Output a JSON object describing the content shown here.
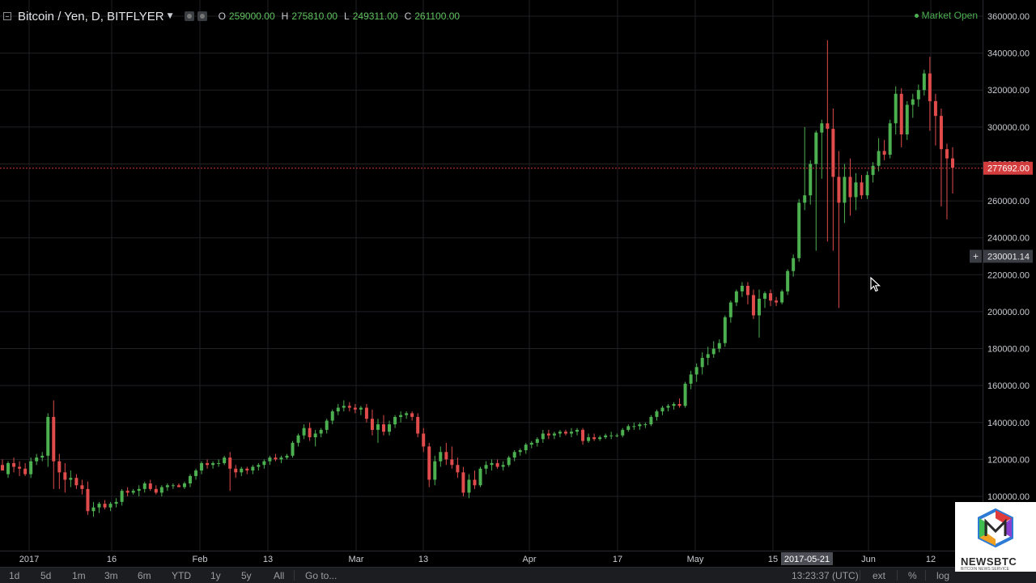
{
  "header": {
    "symbol": "Bitcoin / Yen, D, BITFLYER",
    "ohlc": [
      {
        "label": "O",
        "value": "259000.00"
      },
      {
        "label": "H",
        "value": "275810.00"
      },
      {
        "label": "L",
        "value": "249311.00"
      },
      {
        "label": "C",
        "value": "261100.00"
      }
    ],
    "market_status": "Market Open"
  },
  "colors": {
    "up": "#4caf50",
    "down": "#e04b4b",
    "grid": "#1f2125",
    "price_line": "#d23c3c",
    "axis_text": "#c9ccd1"
  },
  "chart_data": {
    "type": "candlestick",
    "y_axis_labels": [
      "360000.00",
      "340000.00",
      "320000.00",
      "300000.00",
      "280000.00",
      "260000.00",
      "240000.00",
      "220000.00",
      "200000.00",
      "180000.00",
      "160000.00",
      "140000.00",
      "120000.00",
      "100000.00"
    ],
    "ylim": [
      90000,
      360000
    ],
    "x_axis_labels": [
      "2017",
      "16",
      "Feb",
      "13",
      "Mar",
      "13",
      "Apr",
      "17",
      "May",
      "15",
      "Jun",
      "12"
    ],
    "crosshair_date": "2017-05-21",
    "current_price": "277692.00",
    "crosshair_price": "230001.14",
    "series": [
      {
        "o": 117000,
        "h": 120000,
        "l": 114000,
        "c": 114000
      },
      {
        "o": 112000,
        "h": 119000,
        "l": 110000,
        "c": 118000
      },
      {
        "o": 118000,
        "h": 121000,
        "l": 113000,
        "c": 116000
      },
      {
        "o": 116000,
        "h": 119000,
        "l": 111000,
        "c": 115000
      },
      {
        "o": 115000,
        "h": 118000,
        "l": 111000,
        "c": 112000
      },
      {
        "o": 112000,
        "h": 121000,
        "l": 110000,
        "c": 119000
      },
      {
        "o": 119000,
        "h": 123000,
        "l": 117000,
        "c": 121000
      },
      {
        "o": 121000,
        "h": 124000,
        "l": 119000,
        "c": 122000
      },
      {
        "o": 122000,
        "h": 145000,
        "l": 116000,
        "c": 143000
      },
      {
        "o": 143000,
        "h": 152000,
        "l": 104000,
        "c": 119000
      },
      {
        "o": 119000,
        "h": 123000,
        "l": 104000,
        "c": 113000
      },
      {
        "o": 113000,
        "h": 118000,
        "l": 102000,
        "c": 109000
      },
      {
        "o": 109000,
        "h": 114000,
        "l": 105000,
        "c": 110000
      },
      {
        "o": 110000,
        "h": 112000,
        "l": 104000,
        "c": 106000
      },
      {
        "o": 106000,
        "h": 109000,
        "l": 101000,
        "c": 104000
      },
      {
        "o": 104000,
        "h": 108000,
        "l": 90000,
        "c": 92000
      },
      {
        "o": 92000,
        "h": 97000,
        "l": 89000,
        "c": 94000
      },
      {
        "o": 94000,
        "h": 97000,
        "l": 91000,
        "c": 96000
      },
      {
        "o": 96000,
        "h": 98000,
        "l": 93000,
        "c": 94000
      },
      {
        "o": 94000,
        "h": 97000,
        "l": 92000,
        "c": 96000
      },
      {
        "o": 96000,
        "h": 99000,
        "l": 94000,
        "c": 97000
      },
      {
        "o": 97000,
        "h": 104000,
        "l": 95000,
        "c": 103000
      },
      {
        "o": 103000,
        "h": 105000,
        "l": 100000,
        "c": 102000
      },
      {
        "o": 102000,
        "h": 104000,
        "l": 101000,
        "c": 103000
      },
      {
        "o": 103000,
        "h": 106000,
        "l": 100000,
        "c": 104000
      },
      {
        "o": 104000,
        "h": 108000,
        "l": 102000,
        "c": 107000
      },
      {
        "o": 107000,
        "h": 109000,
        "l": 103000,
        "c": 104000
      },
      {
        "o": 104000,
        "h": 106000,
        "l": 101000,
        "c": 102000
      },
      {
        "o": 102000,
        "h": 106000,
        "l": 100000,
        "c": 105000
      },
      {
        "o": 105000,
        "h": 107000,
        "l": 103000,
        "c": 106000
      },
      {
        "o": 106000,
        "h": 107000,
        "l": 104000,
        "c": 106000
      },
      {
        "o": 106000,
        "h": 107000,
        "l": 105000,
        "c": 105000
      },
      {
        "o": 105000,
        "h": 108000,
        "l": 104000,
        "c": 107000
      },
      {
        "o": 107000,
        "h": 112000,
        "l": 105000,
        "c": 111000
      },
      {
        "o": 111000,
        "h": 115000,
        "l": 109000,
        "c": 114000
      },
      {
        "o": 114000,
        "h": 119000,
        "l": 112000,
        "c": 118000
      },
      {
        "o": 118000,
        "h": 120000,
        "l": 115000,
        "c": 117000
      },
      {
        "o": 117000,
        "h": 119000,
        "l": 115000,
        "c": 118000
      },
      {
        "o": 118000,
        "h": 120000,
        "l": 116000,
        "c": 118000
      },
      {
        "o": 118000,
        "h": 122000,
        "l": 117000,
        "c": 121000
      },
      {
        "o": 121000,
        "h": 124000,
        "l": 103000,
        "c": 115000
      },
      {
        "o": 115000,
        "h": 117000,
        "l": 110000,
        "c": 113000
      },
      {
        "o": 113000,
        "h": 116000,
        "l": 111000,
        "c": 115000
      },
      {
        "o": 115000,
        "h": 116000,
        "l": 112000,
        "c": 114000
      },
      {
        "o": 114000,
        "h": 117000,
        "l": 112000,
        "c": 116000
      },
      {
        "o": 116000,
        "h": 118000,
        "l": 114000,
        "c": 117000
      },
      {
        "o": 117000,
        "h": 120000,
        "l": 115000,
        "c": 119000
      },
      {
        "o": 119000,
        "h": 122000,
        "l": 117000,
        "c": 121000
      },
      {
        "o": 121000,
        "h": 123000,
        "l": 119000,
        "c": 120000
      },
      {
        "o": 120000,
        "h": 122000,
        "l": 118000,
        "c": 121000
      },
      {
        "o": 121000,
        "h": 123000,
        "l": 120000,
        "c": 122000
      },
      {
        "o": 122000,
        "h": 130000,
        "l": 121000,
        "c": 129000
      },
      {
        "o": 129000,
        "h": 134000,
        "l": 127000,
        "c": 133000
      },
      {
        "o": 133000,
        "h": 139000,
        "l": 131000,
        "c": 137000
      },
      {
        "o": 137000,
        "h": 140000,
        "l": 130000,
        "c": 132000
      },
      {
        "o": 132000,
        "h": 136000,
        "l": 127000,
        "c": 134000
      },
      {
        "o": 134000,
        "h": 137000,
        "l": 132000,
        "c": 136000
      },
      {
        "o": 136000,
        "h": 142000,
        "l": 134000,
        "c": 141000
      },
      {
        "o": 141000,
        "h": 147000,
        "l": 139000,
        "c": 146000
      },
      {
        "o": 146000,
        "h": 150000,
        "l": 144000,
        "c": 148000
      },
      {
        "o": 148000,
        "h": 152000,
        "l": 146000,
        "c": 149000
      },
      {
        "o": 149000,
        "h": 151000,
        "l": 146000,
        "c": 148000
      },
      {
        "o": 148000,
        "h": 150000,
        "l": 145000,
        "c": 147000
      },
      {
        "o": 147000,
        "h": 149000,
        "l": 144000,
        "c": 148000
      },
      {
        "o": 148000,
        "h": 150000,
        "l": 140000,
        "c": 142000
      },
      {
        "o": 142000,
        "h": 147000,
        "l": 133000,
        "c": 136000
      },
      {
        "o": 136000,
        "h": 142000,
        "l": 129000,
        "c": 139000
      },
      {
        "o": 139000,
        "h": 144000,
        "l": 133000,
        "c": 135000
      },
      {
        "o": 135000,
        "h": 141000,
        "l": 133000,
        "c": 139000
      },
      {
        "o": 139000,
        "h": 144000,
        "l": 137000,
        "c": 143000
      },
      {
        "o": 143000,
        "h": 146000,
        "l": 140000,
        "c": 144000
      },
      {
        "o": 144000,
        "h": 146000,
        "l": 142000,
        "c": 145000
      },
      {
        "o": 145000,
        "h": 146000,
        "l": 141000,
        "c": 143000
      },
      {
        "o": 143000,
        "h": 145000,
        "l": 132000,
        "c": 134000
      },
      {
        "o": 134000,
        "h": 137000,
        "l": 124000,
        "c": 127000
      },
      {
        "o": 127000,
        "h": 129000,
        "l": 105000,
        "c": 109000
      },
      {
        "o": 109000,
        "h": 122000,
        "l": 106000,
        "c": 119000
      },
      {
        "o": 119000,
        "h": 127000,
        "l": 116000,
        "c": 124000
      },
      {
        "o": 124000,
        "h": 129000,
        "l": 117000,
        "c": 120000
      },
      {
        "o": 120000,
        "h": 127000,
        "l": 115000,
        "c": 117000
      },
      {
        "o": 117000,
        "h": 121000,
        "l": 110000,
        "c": 113000
      },
      {
        "o": 113000,
        "h": 116000,
        "l": 100000,
        "c": 102000
      },
      {
        "o": 102000,
        "h": 112000,
        "l": 99000,
        "c": 109000
      },
      {
        "o": 109000,
        "h": 114000,
        "l": 104000,
        "c": 106000
      },
      {
        "o": 106000,
        "h": 116000,
        "l": 105000,
        "c": 115000
      },
      {
        "o": 115000,
        "h": 119000,
        "l": 112000,
        "c": 117000
      },
      {
        "o": 117000,
        "h": 120000,
        "l": 114000,
        "c": 118000
      },
      {
        "o": 118000,
        "h": 120000,
        "l": 115000,
        "c": 116000
      },
      {
        "o": 116000,
        "h": 119000,
        "l": 114000,
        "c": 117000
      },
      {
        "o": 117000,
        "h": 122000,
        "l": 116000,
        "c": 121000
      },
      {
        "o": 121000,
        "h": 125000,
        "l": 119000,
        "c": 124000
      },
      {
        "o": 124000,
        "h": 126000,
        "l": 122000,
        "c": 125000
      },
      {
        "o": 125000,
        "h": 129000,
        "l": 123000,
        "c": 128000
      },
      {
        "o": 128000,
        "h": 130000,
        "l": 126000,
        "c": 129000
      },
      {
        "o": 129000,
        "h": 132000,
        "l": 127000,
        "c": 131000
      },
      {
        "o": 131000,
        "h": 136000,
        "l": 129000,
        "c": 134000
      },
      {
        "o": 134000,
        "h": 136000,
        "l": 131000,
        "c": 133000
      },
      {
        "o": 133000,
        "h": 135000,
        "l": 131000,
        "c": 134000
      },
      {
        "o": 134000,
        "h": 136000,
        "l": 132000,
        "c": 135000
      },
      {
        "o": 135000,
        "h": 136000,
        "l": 133000,
        "c": 134000
      },
      {
        "o": 134000,
        "h": 137000,
        "l": 132000,
        "c": 135000
      },
      {
        "o": 135000,
        "h": 137000,
        "l": 133000,
        "c": 136000
      },
      {
        "o": 136000,
        "h": 137000,
        "l": 128000,
        "c": 130000
      },
      {
        "o": 130000,
        "h": 134000,
        "l": 129000,
        "c": 132000
      },
      {
        "o": 132000,
        "h": 134000,
        "l": 130000,
        "c": 131000
      },
      {
        "o": 131000,
        "h": 133000,
        "l": 130000,
        "c": 132000
      },
      {
        "o": 132000,
        "h": 134000,
        "l": 131000,
        "c": 133000
      },
      {
        "o": 133000,
        "h": 135000,
        "l": 131000,
        "c": 133000
      },
      {
        "o": 133000,
        "h": 134000,
        "l": 132000,
        "c": 133000
      },
      {
        "o": 133000,
        "h": 137000,
        "l": 132000,
        "c": 136000
      },
      {
        "o": 136000,
        "h": 139000,
        "l": 135000,
        "c": 138000
      },
      {
        "o": 138000,
        "h": 140000,
        "l": 136000,
        "c": 138000
      },
      {
        "o": 138000,
        "h": 140000,
        "l": 136000,
        "c": 139000
      },
      {
        "o": 139000,
        "h": 140000,
        "l": 137000,
        "c": 139000
      },
      {
        "o": 139000,
        "h": 144000,
        "l": 138000,
        "c": 143000
      },
      {
        "o": 143000,
        "h": 147000,
        "l": 141000,
        "c": 146000
      },
      {
        "o": 146000,
        "h": 149000,
        "l": 144000,
        "c": 148000
      },
      {
        "o": 148000,
        "h": 150000,
        "l": 146000,
        "c": 149000
      },
      {
        "o": 149000,
        "h": 151000,
        "l": 147000,
        "c": 150000
      },
      {
        "o": 150000,
        "h": 153000,
        "l": 148000,
        "c": 149000
      },
      {
        "o": 149000,
        "h": 162000,
        "l": 148000,
        "c": 161000
      },
      {
        "o": 161000,
        "h": 168000,
        "l": 158000,
        "c": 166000
      },
      {
        "o": 166000,
        "h": 172000,
        "l": 162000,
        "c": 170000
      },
      {
        "o": 170000,
        "h": 178000,
        "l": 166000,
        "c": 175000
      },
      {
        "o": 175000,
        "h": 181000,
        "l": 171000,
        "c": 177000
      },
      {
        "o": 177000,
        "h": 184000,
        "l": 175000,
        "c": 180000
      },
      {
        "o": 180000,
        "h": 185000,
        "l": 178000,
        "c": 183000
      },
      {
        "o": 183000,
        "h": 198000,
        "l": 181000,
        "c": 197000
      },
      {
        "o": 197000,
        "h": 206000,
        "l": 194000,
        "c": 205000
      },
      {
        "o": 205000,
        "h": 212000,
        "l": 203000,
        "c": 211000
      },
      {
        "o": 211000,
        "h": 216000,
        "l": 208000,
        "c": 214000
      },
      {
        "o": 214000,
        "h": 216000,
        "l": 204000,
        "c": 209000
      },
      {
        "o": 209000,
        "h": 212000,
        "l": 196000,
        "c": 198000
      },
      {
        "o": 198000,
        "h": 212000,
        "l": 186000,
        "c": 207000
      },
      {
        "o": 207000,
        "h": 211000,
        "l": 202000,
        "c": 210000
      },
      {
        "o": 210000,
        "h": 212000,
        "l": 203000,
        "c": 206000
      },
      {
        "o": 206000,
        "h": 208000,
        "l": 203000,
        "c": 205000
      },
      {
        "o": 205000,
        "h": 212000,
        "l": 204000,
        "c": 211000
      },
      {
        "o": 211000,
        "h": 223000,
        "l": 209000,
        "c": 222000
      },
      {
        "o": 222000,
        "h": 231000,
        "l": 219000,
        "c": 229000
      },
      {
        "o": 229000,
        "h": 261000,
        "l": 227000,
        "c": 259000
      },
      {
        "o": 259000,
        "h": 300000,
        "l": 255000,
        "c": 263000
      },
      {
        "o": 263000,
        "h": 282000,
        "l": 258000,
        "c": 280000
      },
      {
        "o": 280000,
        "h": 298000,
        "l": 233000,
        "c": 297000
      },
      {
        "o": 297000,
        "h": 304000,
        "l": 272000,
        "c": 302000
      },
      {
        "o": 302000,
        "h": 347000,
        "l": 238000,
        "c": 299000
      },
      {
        "o": 299000,
        "h": 310000,
        "l": 233000,
        "c": 273000
      },
      {
        "o": 273000,
        "h": 287000,
        "l": 202000,
        "c": 259000
      },
      {
        "o": 259000,
        "h": 280000,
        "l": 248000,
        "c": 273000
      },
      {
        "o": 273000,
        "h": 283000,
        "l": 252000,
        "c": 262000
      },
      {
        "o": 262000,
        "h": 275000,
        "l": 255000,
        "c": 270000
      },
      {
        "o": 270000,
        "h": 274000,
        "l": 261000,
        "c": 263000
      },
      {
        "o": 263000,
        "h": 276000,
        "l": 261000,
        "c": 274000
      },
      {
        "o": 274000,
        "h": 281000,
        "l": 270000,
        "c": 279000
      },
      {
        "o": 279000,
        "h": 294000,
        "l": 276000,
        "c": 287000
      },
      {
        "o": 287000,
        "h": 293000,
        "l": 282000,
        "c": 285000
      },
      {
        "o": 285000,
        "h": 304000,
        "l": 283000,
        "c": 302000
      },
      {
        "o": 302000,
        "h": 322000,
        "l": 296000,
        "c": 318000
      },
      {
        "o": 318000,
        "h": 321000,
        "l": 289000,
        "c": 296000
      },
      {
        "o": 296000,
        "h": 314000,
        "l": 293000,
        "c": 312000
      },
      {
        "o": 312000,
        "h": 318000,
        "l": 305000,
        "c": 315000
      },
      {
        "o": 315000,
        "h": 323000,
        "l": 311000,
        "c": 320000
      },
      {
        "o": 320000,
        "h": 331000,
        "l": 317000,
        "c": 329000
      },
      {
        "o": 329000,
        "h": 338000,
        "l": 298000,
        "c": 314000
      },
      {
        "o": 314000,
        "h": 318000,
        "l": 290000,
        "c": 306000
      },
      {
        "o": 306000,
        "h": 310000,
        "l": 257000,
        "c": 288000
      },
      {
        "o": 288000,
        "h": 291000,
        "l": 250000,
        "c": 283000
      },
      {
        "o": 283000,
        "h": 289000,
        "l": 264000,
        "c": 278000
      }
    ]
  },
  "cursor": {
    "crosshair_symbol": "+"
  },
  "toolbar": {
    "ranges": [
      "1d",
      "5d",
      "1m",
      "3m",
      "6m",
      "YTD",
      "1y",
      "5y",
      "All"
    ],
    "goto": "Go to...",
    "time": "13:23:37 (UTC)",
    "ext": "ext",
    "percent": "%",
    "log": "log"
  },
  "logo": {
    "text": "NEWSBTC",
    "subtext": "BITCOIN NEWS SERVICE"
  }
}
